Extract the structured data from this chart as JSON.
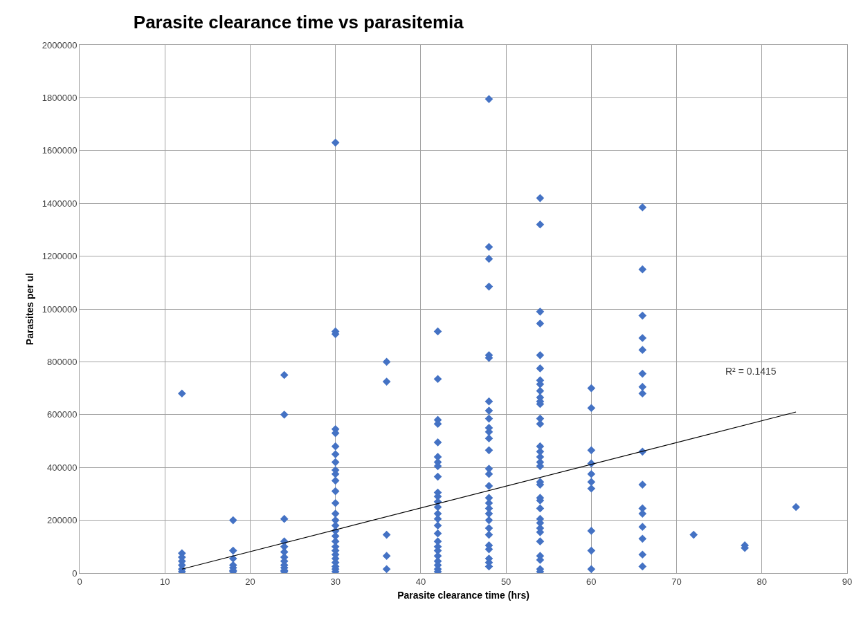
{
  "chart_data": {
    "type": "scatter",
    "title": "Parasite clearance time vs parasitemia",
    "xlabel": "Parasite clearance time (hrs)",
    "ylabel": "Parasites per ul",
    "xlim": [
      0,
      90
    ],
    "xticks": [
      0,
      10,
      20,
      30,
      40,
      50,
      60,
      70,
      80,
      90
    ],
    "ylim": [
      0,
      2000000
    ],
    "yticks": [
      0,
      200000,
      400000,
      600000,
      800000,
      1000000,
      1200000,
      1400000,
      1600000,
      1800000,
      2000000
    ],
    "grid": true,
    "series": [
      {
        "color": "#4472c4",
        "marker": "diamond",
        "x": [
          12,
          12,
          12,
          12,
          12,
          12,
          12,
          18,
          18,
          18,
          18,
          18,
          18,
          18,
          24,
          24,
          24,
          24,
          24,
          24,
          24,
          24,
          24,
          24,
          24,
          24,
          30,
          30,
          30,
          30,
          30,
          30,
          30,
          30,
          30,
          30,
          30,
          30,
          30,
          30,
          30,
          30,
          30,
          30,
          30,
          30,
          30,
          30,
          30,
          30,
          30,
          30,
          30,
          36,
          36,
          36,
          36,
          36,
          42,
          42,
          42,
          42,
          42,
          42,
          42,
          42,
          42,
          42,
          42,
          42,
          42,
          42,
          42,
          42,
          42,
          42,
          42,
          42,
          42,
          42,
          42,
          42,
          42,
          48,
          48,
          48,
          48,
          48,
          48,
          48,
          48,
          48,
          48,
          48,
          48,
          48,
          48,
          48,
          48,
          48,
          48,
          48,
          48,
          48,
          48,
          48,
          48,
          48,
          48,
          48,
          48,
          54,
          54,
          54,
          54,
          54,
          54,
          54,
          54,
          54,
          54,
          54,
          54,
          54,
          54,
          54,
          54,
          54,
          54,
          54,
          54,
          54,
          54,
          54,
          54,
          54,
          54,
          54,
          54,
          54,
          54,
          54,
          54,
          54,
          60,
          60,
          60,
          60,
          60,
          60,
          60,
          60,
          60,
          60,
          66,
          66,
          66,
          66,
          66,
          66,
          66,
          66,
          66,
          66,
          66,
          66,
          66,
          66,
          66,
          66,
          72,
          78,
          78,
          84
        ],
        "values": [
          680000,
          75000,
          60000,
          45000,
          30000,
          15000,
          5000,
          200000,
          85000,
          55000,
          30000,
          20000,
          10000,
          5000,
          750000,
          600000,
          205000,
          120000,
          100000,
          80000,
          60000,
          45000,
          30000,
          20000,
          10000,
          5000,
          1630000,
          915000,
          905000,
          545000,
          530000,
          480000,
          450000,
          420000,
          390000,
          375000,
          350000,
          310000,
          265000,
          225000,
          200000,
          180000,
          160000,
          140000,
          120000,
          100000,
          85000,
          70000,
          55000,
          40000,
          25000,
          15000,
          5000,
          800000,
          725000,
          145000,
          65000,
          15000,
          915000,
          735000,
          580000,
          565000,
          495000,
          440000,
          420000,
          405000,
          365000,
          305000,
          290000,
          270000,
          250000,
          225000,
          205000,
          180000,
          150000,
          120000,
          100000,
          85000,
          65000,
          45000,
          30000,
          15000,
          5000,
          1795000,
          1235000,
          1190000,
          1085000,
          825000,
          815000,
          650000,
          615000,
          585000,
          550000,
          535000,
          510000,
          465000,
          395000,
          375000,
          330000,
          285000,
          265000,
          245000,
          225000,
          200000,
          170000,
          145000,
          105000,
          90000,
          55000,
          40000,
          25000,
          1420000,
          1320000,
          990000,
          945000,
          825000,
          775000,
          730000,
          715000,
          690000,
          665000,
          650000,
          640000,
          585000,
          565000,
          480000,
          460000,
          440000,
          420000,
          405000,
          345000,
          335000,
          285000,
          275000,
          245000,
          205000,
          190000,
          170000,
          155000,
          120000,
          65000,
          50000,
          15000,
          5000,
          700000,
          625000,
          465000,
          415000,
          375000,
          345000,
          320000,
          160000,
          85000,
          15000,
          1385000,
          1150000,
          975000,
          890000,
          845000,
          755000,
          705000,
          680000,
          460000,
          335000,
          245000,
          225000,
          175000,
          130000,
          70000,
          25000,
          145000,
          105000,
          95000,
          250000
        ]
      },
      {
        "type": "line",
        "color": "#000000",
        "marker": "none",
        "x": [
          12,
          84
        ],
        "values": [
          15000,
          610000
        ]
      }
    ],
    "annotations": [
      "R² = 0.1415"
    ]
  }
}
